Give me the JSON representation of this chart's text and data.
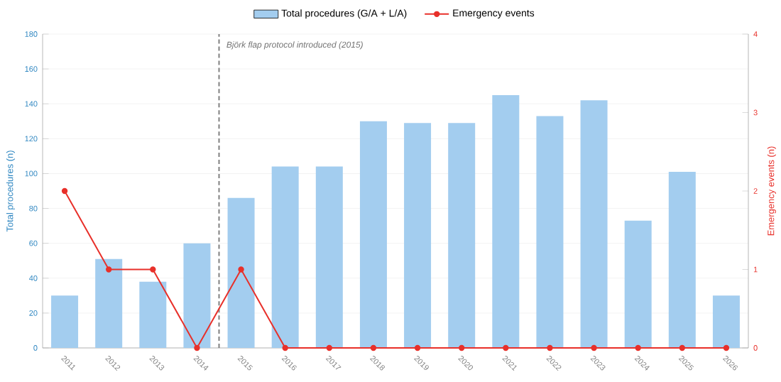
{
  "chart_data": {
    "type": "bar",
    "x": [
      2011,
      2012,
      2013,
      2014,
      2015,
      2016,
      2017,
      2018,
      2019,
      2020,
      2021,
      2022,
      2023,
      2024,
      2025,
      2026
    ],
    "series": [
      {
        "name": "Total procedures (G/A + L/A)",
        "color": "#a3cdef",
        "values": [
          30,
          51,
          38,
          60,
          86,
          104,
          104,
          130,
          129,
          129,
          145,
          133,
          142,
          73,
          101,
          30
        ]
      },
      {
        "name": "Emergency events",
        "type": "line",
        "axis": "y2",
        "color": "#e8302a",
        "marker": "circle",
        "line_style": "solid",
        "values": [
          2,
          1,
          1,
          0,
          1,
          0,
          0,
          0,
          0,
          0,
          0,
          0,
          0,
          0,
          0,
          0
        ]
      }
    ],
    "xlim": [
      2010.5,
      2026.5
    ],
    "xticks": [
      2011,
      2012,
      2013,
      2014,
      2015,
      2016,
      2017,
      2018,
      2019,
      2020,
      2021,
      2022,
      2023,
      2024,
      2025,
      2026
    ],
    "ylim": [
      0,
      180
    ],
    "yticks": [
      0,
      20,
      40,
      60,
      80,
      100,
      120,
      140,
      160,
      180
    ],
    "y2lim": [
      0,
      4
    ],
    "y2ticks": [
      0,
      1,
      2,
      3,
      4
    ],
    "ylabel": "Total procedures (n)",
    "y2label": "Emergency events (n)",
    "ref_lines": [
      {
        "axis": "x",
        "value": 2014.5,
        "label": "Björk flap protocol introduced (2015)",
        "color": "#808080",
        "line_style": "dashed"
      }
    ],
    "grid": "y",
    "legend": "top"
  }
}
